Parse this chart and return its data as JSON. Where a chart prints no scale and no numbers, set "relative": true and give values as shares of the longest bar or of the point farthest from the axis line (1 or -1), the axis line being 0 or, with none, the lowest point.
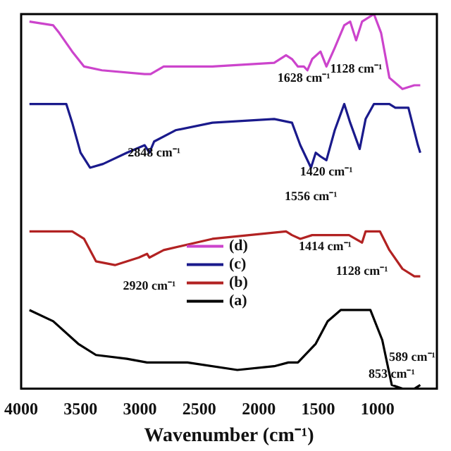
{
  "chart_data": {
    "type": "line",
    "relative": true,
    "xlabel": "Wavenumber (cm⁻¹)",
    "xlim": [
      4000,
      500
    ],
    "xticks": [
      4000,
      3500,
      3000,
      2500,
      2000,
      1500,
      1000
    ],
    "marker": "none",
    "legend": "center",
    "series": [
      {
        "name": "(d)",
        "color": "#cc44cc",
        "x": [
          3930,
          3730,
          3680,
          3570,
          3470,
          3320,
          2960,
          2910,
          2800,
          2390,
          1870,
          1770,
          1720,
          1670,
          1620,
          1590,
          1550,
          1480,
          1430,
          1360,
          1280,
          1230,
          1180,
          1130,
          1030,
          970,
          900,
          790,
          690,
          640
        ],
        "values": [
          0.98,
          0.97,
          0.95,
          0.9,
          0.86,
          0.85,
          0.84,
          0.84,
          0.86,
          0.86,
          0.87,
          0.89,
          0.88,
          0.86,
          0.86,
          0.85,
          0.88,
          0.9,
          0.86,
          0.91,
          0.97,
          0.98,
          0.93,
          0.98,
          1,
          0.95,
          0.83,
          0.8,
          0.81,
          0.81
        ]
      },
      {
        "name": "(c)",
        "color": "#1a1a8c",
        "x": [
          3930,
          3620,
          3570,
          3500,
          3420,
          3310,
          3110,
          2960,
          2920,
          2880,
          2700,
          2390,
          1870,
          1720,
          1650,
          1560,
          1520,
          1480,
          1430,
          1360,
          1280,
          1230,
          1150,
          1100,
          1030,
          900,
          850,
          740,
          660,
          640
        ],
        "values": [
          0.76,
          0.76,
          0.71,
          0.63,
          0.59,
          0.6,
          0.63,
          0.65,
          0.63,
          0.66,
          0.69,
          0.71,
          0.72,
          0.71,
          0.65,
          0.59,
          0.63,
          0.62,
          0.61,
          0.69,
          0.76,
          0.71,
          0.64,
          0.72,
          0.76,
          0.76,
          0.75,
          0.75,
          0.65,
          0.63
        ]
      },
      {
        "name": "(b)",
        "color": "#b22222",
        "x": [
          3930,
          3570,
          3470,
          3370,
          3210,
          3010,
          2940,
          2920,
          2800,
          2390,
          1770,
          1720,
          1650,
          1550,
          1440,
          1240,
          1130,
          1100,
          980,
          900,
          790,
          690,
          640
        ],
        "values": [
          0.42,
          0.42,
          0.4,
          0.34,
          0.33,
          0.35,
          0.36,
          0.35,
          0.37,
          0.4,
          0.42,
          0.41,
          0.4,
          0.41,
          0.41,
          0.41,
          0.39,
          0.42,
          0.42,
          0.37,
          0.32,
          0.3,
          0.3
        ]
      },
      {
        "name": "(a)",
        "color": "#000000",
        "x": [
          3930,
          3730,
          3520,
          3370,
          3110,
          2940,
          2910,
          2600,
          2180,
          1870,
          1750,
          1670,
          1520,
          1420,
          1310,
          1140,
          1060,
          960,
          880,
          790,
          690,
          640
        ],
        "values": [
          0.21,
          0.18,
          0.12,
          0.09,
          0.08,
          0.07,
          0.07,
          0.07,
          0.05,
          0.06,
          0.07,
          0.07,
          0.12,
          0.18,
          0.21,
          0.21,
          0.21,
          0.13,
          0.01,
          0,
          0,
          0.01
        ]
      }
    ],
    "annotations": [
      {
        "text": "1628 cm⁻¹",
        "x": 1620,
        "y": 0.86
      },
      {
        "text": "1128 cm⁻¹",
        "x": 1180,
        "y": 0.93
      },
      {
        "text": "2848 cm⁻¹",
        "x": 2880,
        "y": 0.66
      },
      {
        "text": "1556 cm⁻¹",
        "x": 1560,
        "y": 0.59
      },
      {
        "text": "1420 cm⁻¹",
        "x": 1430,
        "y": 0.61
      },
      {
        "text": "2920 cm⁻¹",
        "x": 2920,
        "y": 0.35
      },
      {
        "text": "1414 cm⁻¹",
        "x": 1440,
        "y": 0.41
      },
      {
        "text": "1128 cm⁻¹",
        "x": 1130,
        "y": 0.39
      },
      {
        "text": "853 cm⁻¹",
        "x": 880,
        "y": 0.01
      },
      {
        "text": "589 cm⁻¹",
        "x": 640,
        "y": 0.01
      }
    ]
  }
}
